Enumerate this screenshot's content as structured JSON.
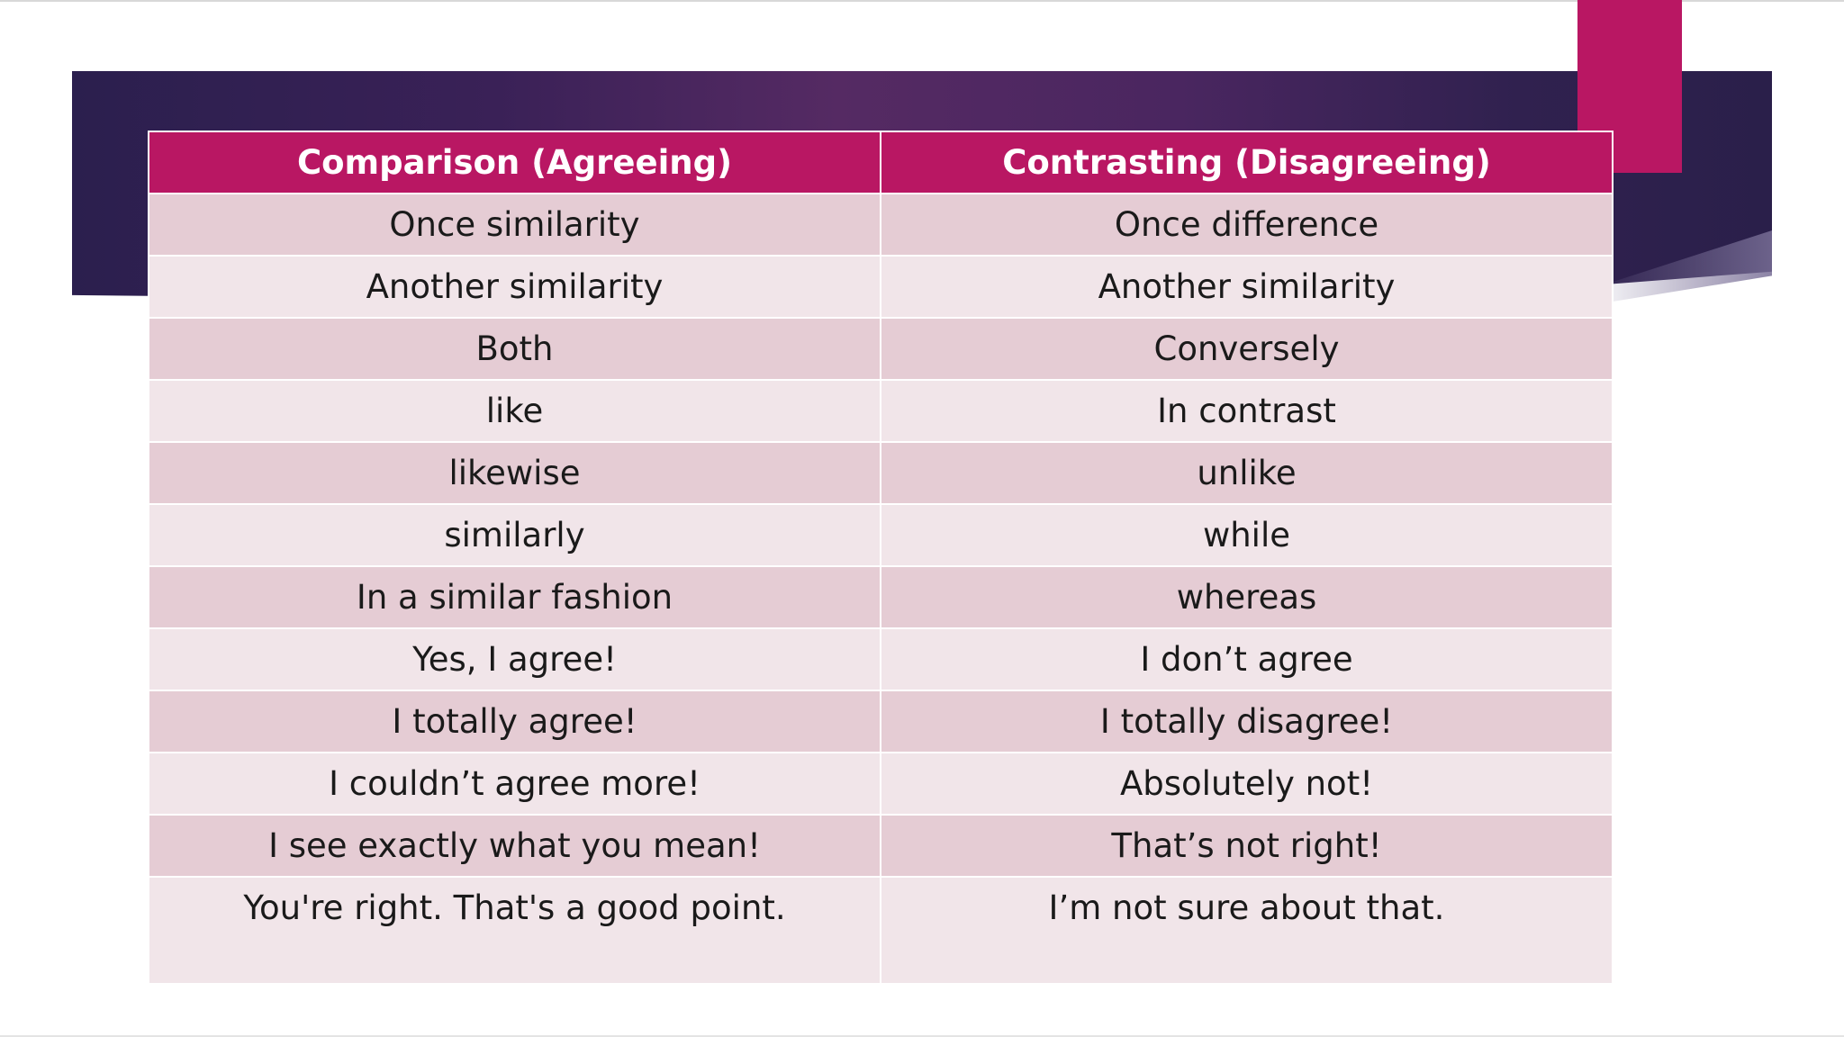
{
  "table": {
    "headers": [
      "Comparison (Agreeing)",
      "Contrasting (Disagreeing)"
    ],
    "rows": [
      [
        "Once similarity",
        "Once difference"
      ],
      [
        "Another similarity",
        "Another similarity"
      ],
      [
        "Both",
        "Conversely"
      ],
      [
        "like",
        "In contrast"
      ],
      [
        "likewise",
        "unlike"
      ],
      [
        "similarly",
        "while"
      ],
      [
        "In a similar fashion",
        "whereas"
      ],
      [
        "Yes, I agree!",
        "I don’t agree"
      ],
      [
        "I totally agree!",
        "I totally disagree!"
      ],
      [
        "I couldn’t agree more!",
        "Absolutely not!"
      ],
      [
        "I see exactly what you mean!",
        "That’s not right!"
      ],
      [
        "You're right. That's a good point.",
        "I’m not sure about that."
      ]
    ]
  },
  "colors": {
    "header_bg": "#b91763",
    "row_odd": "#e5ccd4",
    "row_even": "#f1e5e9",
    "banner": "#3a2157",
    "accent": "#b91763"
  }
}
